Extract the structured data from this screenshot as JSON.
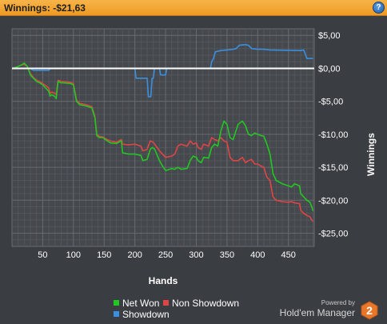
{
  "header": {
    "winnings_label": "Winnings:",
    "winnings_value": "-$21,63",
    "help_label": "?"
  },
  "colors": {
    "net_won": "#22c722",
    "non_showdown": "#e04545",
    "showdown": "#3b8fe0",
    "zero_line": "#ffffff",
    "header_bg": "#f0a22d",
    "background": "#3a3d42"
  },
  "chart_data": {
    "type": "line",
    "xlabel": "Hands",
    "ylabel": "Winnings",
    "xlim": [
      0,
      492
    ],
    "ylim": [
      -27,
      6
    ],
    "x_ticks": [
      50,
      100,
      150,
      200,
      250,
      300,
      350,
      400,
      450
    ],
    "y_ticks": [
      5,
      0,
      -5,
      -10,
      -15,
      -20,
      -25
    ],
    "y_tick_labels": [
      "$5,00",
      "$0,00",
      "-$5,00",
      "-$10,00",
      "-$15,00",
      "-$20,00",
      "-$25,00"
    ],
    "grid": true,
    "legend": "bottom-center",
    "series": [
      {
        "name": "Net Won",
        "color_key": "net_won",
        "points": [
          [
            0,
            0
          ],
          [
            8,
            0.2
          ],
          [
            15,
            0.5
          ],
          [
            20,
            0.8
          ],
          [
            25,
            0.3
          ],
          [
            30,
            -1.0
          ],
          [
            35,
            -1.5
          ],
          [
            40,
            -2.0
          ],
          [
            45,
            -2.2
          ],
          [
            50,
            -2.5
          ],
          [
            55,
            -3.0
          ],
          [
            60,
            -3.5
          ],
          [
            62,
            -4.2
          ],
          [
            65,
            -4.0
          ],
          [
            70,
            -4.3
          ],
          [
            72,
            -4.6
          ],
          [
            75,
            -2.0
          ],
          [
            80,
            -2.2
          ],
          [
            85,
            -2.2
          ],
          [
            95,
            -2.3
          ],
          [
            100,
            -2.5
          ],
          [
            105,
            -5.0
          ],
          [
            110,
            -5.5
          ],
          [
            120,
            -5.7
          ],
          [
            130,
            -6.0
          ],
          [
            135,
            -7.5
          ],
          [
            138,
            -10.2
          ],
          [
            142,
            -10.5
          ],
          [
            148,
            -10.5
          ],
          [
            155,
            -11.0
          ],
          [
            160,
            -11.3
          ],
          [
            170,
            -11.4
          ],
          [
            178,
            -11.0
          ],
          [
            180,
            -12.8
          ],
          [
            190,
            -13.0
          ],
          [
            200,
            -13.0
          ],
          [
            210,
            -13.2
          ],
          [
            213,
            -14.0
          ],
          [
            220,
            -13.8
          ],
          [
            225,
            -12.3
          ],
          [
            228,
            -12.0
          ],
          [
            232,
            -12.2
          ],
          [
            240,
            -14.0
          ],
          [
            245,
            -14.8
          ],
          [
            250,
            -15.5
          ],
          [
            260,
            -15.2
          ],
          [
            265,
            -15.3
          ],
          [
            270,
            -15.0
          ],
          [
            275,
            -15.3
          ],
          [
            285,
            -15.2
          ],
          [
            290,
            -14.0
          ],
          [
            295,
            -13.3
          ],
          [
            300,
            -13.5
          ],
          [
            303,
            -14.0
          ],
          [
            308,
            -14.3
          ],
          [
            312,
            -13.5
          ],
          [
            320,
            -13.6
          ],
          [
            325,
            -12.0
          ],
          [
            330,
            -11.5
          ],
          [
            335,
            -11.8
          ],
          [
            340,
            -9.5
          ],
          [
            345,
            -8.0
          ],
          [
            350,
            -8.5
          ],
          [
            355,
            -10.5
          ],
          [
            360,
            -10.8
          ],
          [
            368,
            -8.5
          ],
          [
            375,
            -8.0
          ],
          [
            380,
            -8.7
          ],
          [
            385,
            -10.0
          ],
          [
            390,
            -10.2
          ],
          [
            395,
            -9.8
          ],
          [
            400,
            -10.0
          ],
          [
            405,
            -10.2
          ],
          [
            410,
            -10.3
          ],
          [
            415,
            -11.5
          ],
          [
            420,
            -13.0
          ],
          [
            425,
            -16.0
          ],
          [
            430,
            -17.0
          ],
          [
            440,
            -17.5
          ],
          [
            450,
            -17.8
          ],
          [
            455,
            -18.0
          ],
          [
            460,
            -17.5
          ],
          [
            468,
            -17.8
          ],
          [
            470,
            -19.0
          ],
          [
            475,
            -19.5
          ],
          [
            480,
            -20.0
          ],
          [
            485,
            -20.3
          ],
          [
            488,
            -21.0
          ],
          [
            490,
            -21.63
          ]
        ]
      },
      {
        "name": "Non Showdown",
        "color_key": "non_showdown",
        "points": [
          [
            0,
            0
          ],
          [
            8,
            0.2
          ],
          [
            15,
            0.5
          ],
          [
            20,
            0.6
          ],
          [
            25,
            0.3
          ],
          [
            30,
            -0.8
          ],
          [
            35,
            -1.4
          ],
          [
            40,
            -1.8
          ],
          [
            45,
            -2.0
          ],
          [
            50,
            -2.3
          ],
          [
            55,
            -2.6
          ],
          [
            60,
            -3.0
          ],
          [
            62,
            -3.8
          ],
          [
            65,
            -3.6
          ],
          [
            70,
            -3.8
          ],
          [
            72,
            -4.0
          ],
          [
            75,
            -1.8
          ],
          [
            80,
            -2.0
          ],
          [
            85,
            -2.0
          ],
          [
            95,
            -2.1
          ],
          [
            100,
            -2.3
          ],
          [
            105,
            -4.8
          ],
          [
            110,
            -5.3
          ],
          [
            120,
            -5.5
          ],
          [
            130,
            -5.8
          ],
          [
            135,
            -7.3
          ],
          [
            138,
            -10.0
          ],
          [
            142,
            -10.3
          ],
          [
            148,
            -10.4
          ],
          [
            155,
            -10.8
          ],
          [
            160,
            -11.0
          ],
          [
            170,
            -11.2
          ],
          [
            178,
            -10.8
          ],
          [
            180,
            -11.5
          ],
          [
            190,
            -11.6
          ],
          [
            200,
            -11.5
          ],
          [
            210,
            -11.8
          ],
          [
            213,
            -12.5
          ],
          [
            220,
            -12.3
          ],
          [
            225,
            -11.0
          ],
          [
            230,
            -11.2
          ],
          [
            240,
            -12.5
          ],
          [
            245,
            -13.0
          ],
          [
            250,
            -13.5
          ],
          [
            260,
            -13.3
          ],
          [
            265,
            -13.0
          ],
          [
            270,
            -11.8
          ],
          [
            275,
            -11.5
          ],
          [
            285,
            -11.8
          ],
          [
            290,
            -11.0
          ],
          [
            295,
            -11.5
          ],
          [
            300,
            -11.3
          ],
          [
            303,
            -12.0
          ],
          [
            308,
            -12.3
          ],
          [
            312,
            -11.5
          ],
          [
            320,
            -11.8
          ],
          [
            325,
            -10.5
          ],
          [
            330,
            -10.8
          ],
          [
            335,
            -11.0
          ],
          [
            340,
            -10.5
          ],
          [
            345,
            -11.0
          ],
          [
            350,
            -11.2
          ],
          [
            355,
            -13.5
          ],
          [
            360,
            -14.0
          ],
          [
            368,
            -14.0
          ],
          [
            375,
            -13.5
          ],
          [
            380,
            -14.3
          ],
          [
            385,
            -14.0
          ],
          [
            390,
            -13.8
          ],
          [
            395,
            -14.5
          ],
          [
            400,
            -14.5
          ],
          [
            405,
            -14.8
          ],
          [
            410,
            -15.0
          ],
          [
            415,
            -16.5
          ],
          [
            420,
            -17.0
          ],
          [
            425,
            -19.5
          ],
          [
            430,
            -20.0
          ],
          [
            440,
            -20.2
          ],
          [
            450,
            -20.3
          ],
          [
            455,
            -20.2
          ],
          [
            460,
            -20.4
          ],
          [
            468,
            -20.5
          ],
          [
            470,
            -21.5
          ],
          [
            475,
            -22.0
          ],
          [
            480,
            -22.3
          ],
          [
            485,
            -22.5
          ],
          [
            488,
            -23.0
          ],
          [
            490,
            -23.2
          ]
        ]
      },
      {
        "name": "Showdown",
        "color_key": "showdown",
        "points": [
          [
            0,
            0
          ],
          [
            30,
            0
          ],
          [
            35,
            -0.3
          ],
          [
            60,
            -0.3
          ],
          [
            62,
            0
          ],
          [
            200,
            0
          ],
          [
            202,
            -1.5
          ],
          [
            220,
            -1.5
          ],
          [
            222,
            -4.3
          ],
          [
            226,
            -4.3
          ],
          [
            228,
            -1.5
          ],
          [
            230,
            -1.5
          ],
          [
            232,
            0
          ],
          [
            240,
            0
          ],
          [
            242,
            -1.0
          ],
          [
            250,
            -1.0
          ],
          [
            252,
            0
          ],
          [
            323,
            0
          ],
          [
            325,
            1.0
          ],
          [
            328,
            1.5
          ],
          [
            331,
            2.5
          ],
          [
            340,
            2.7
          ],
          [
            350,
            2.8
          ],
          [
            360,
            2.9
          ],
          [
            365,
            3.0
          ],
          [
            370,
            3.5
          ],
          [
            380,
            3.6
          ],
          [
            385,
            3.5
          ],
          [
            390,
            3.0
          ],
          [
            400,
            2.9
          ],
          [
            410,
            2.9
          ],
          [
            420,
            2.8
          ],
          [
            470,
            2.7
          ],
          [
            475,
            2.8
          ],
          [
            480,
            1.5
          ],
          [
            490,
            1.5
          ]
        ]
      }
    ]
  },
  "brand": {
    "powered_by": "Powered by",
    "product": "Hold'em Manager",
    "logo_digit": "2"
  }
}
